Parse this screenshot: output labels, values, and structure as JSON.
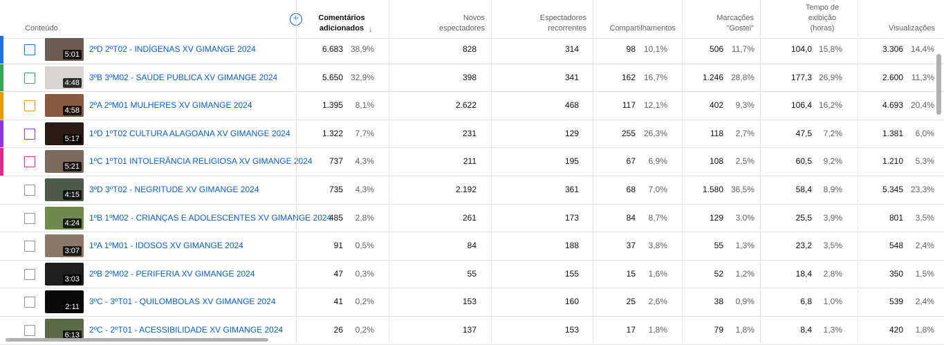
{
  "header": {
    "content": "Conteúdo",
    "comments": "Comentários adicionados",
    "new_viewers": "Novos espectadores",
    "returning_viewers": "Espectadores recorrentes",
    "shares": "Compartilhamentos",
    "likes": "Marcações \"Gostei\"",
    "watch_time": "Tempo de exibição (horas)",
    "views": "Visualizações",
    "add_icon": "plus-circle-icon",
    "sort_icon": "arrow-down-icon"
  },
  "rows": [
    {
      "color": "#1a73e8",
      "duration": "5:01",
      "title": "2ºD 2ºT02 - INDÍGENAS XV GIMANGE 2024",
      "comments": "6.683",
      "comments_pct": "38,9%",
      "new": "828",
      "returning": "314",
      "shares": "98",
      "shares_pct": "10,1%",
      "likes": "506",
      "likes_pct": "11,7%",
      "watch": "104,0",
      "watch_pct": "15,8%",
      "views": "3.306",
      "views_pct": "14,4%",
      "thumb": "#6b5d52"
    },
    {
      "color": "#34a853",
      "duration": "4:48",
      "title": "3ºB 3ºM02 - SAÚDE PUBLICA XV GIMANGE 2024",
      "comments": "5.650",
      "comments_pct": "32,9%",
      "new": "398",
      "returning": "341",
      "shares": "162",
      "shares_pct": "16,7%",
      "likes": "1.246",
      "likes_pct": "28,8%",
      "watch": "177,3",
      "watch_pct": "26,9%",
      "views": "2.600",
      "views_pct": "11,3%",
      "thumb": "#d8d4d0"
    },
    {
      "color": "#f29900",
      "duration": "4:58",
      "title": "2ºA 2ºM01 MULHERES XV GIMANGE 2024",
      "comments": "1.395",
      "comments_pct": "8,1%",
      "new": "2.622",
      "returning": "468",
      "shares": "117",
      "shares_pct": "12,1%",
      "likes": "402",
      "likes_pct": "9,3%",
      "watch": "106,4",
      "watch_pct": "16,2%",
      "views": "4.693",
      "views_pct": "20,4%",
      "thumb": "#8a5a40"
    },
    {
      "color": "#9334e6",
      "duration": "5:17",
      "title": "1ºD 1ºT02 CULTURA ALAGOANA XV GIMANGE 2024",
      "comments": "1.322",
      "comments_pct": "7,7%",
      "new": "231",
      "returning": "129",
      "shares": "255",
      "shares_pct": "26,3%",
      "likes": "118",
      "likes_pct": "2,7%",
      "watch": "47,5",
      "watch_pct": "7,2%",
      "views": "1.381",
      "views_pct": "6,0%",
      "thumb": "#2a1a14"
    },
    {
      "color": "#e52592",
      "duration": "5:21",
      "title": "1ºC 1ºT01 INTOLERÂNCIA RELIGIOSA XV GIMANGE 2024",
      "comments": "737",
      "comments_pct": "4,3%",
      "new": "211",
      "returning": "195",
      "shares": "67",
      "shares_pct": "6,9%",
      "likes": "108",
      "likes_pct": "2,5%",
      "watch": "60,5",
      "watch_pct": "9,2%",
      "views": "1.210",
      "views_pct": "5,3%",
      "thumb": "#7a6a5c"
    },
    {
      "color": "",
      "duration": "4:15",
      "title": "3ºD 3ºT02 - NEGRITUDE XV GIMANGE 2024",
      "comments": "735",
      "comments_pct": "4,3%",
      "new": "2.192",
      "returning": "361",
      "shares": "68",
      "shares_pct": "7,0%",
      "likes": "1.580",
      "likes_pct": "36,5%",
      "watch": "58,4",
      "watch_pct": "8,9%",
      "views": "5.345",
      "views_pct": "23,3%",
      "thumb": "#4e5a4a"
    },
    {
      "color": "",
      "duration": "4:24",
      "title": "1ºB 1ºM02 - CRIANÇAS E ADOLESCENTES XV GIMANGE 2024",
      "comments": "485",
      "comments_pct": "2,8%",
      "new": "261",
      "returning": "173",
      "shares": "84",
      "shares_pct": "8,7%",
      "likes": "129",
      "likes_pct": "3,0%",
      "watch": "25,5",
      "watch_pct": "3,9%",
      "views": "801",
      "views_pct": "3,5%",
      "thumb": "#6e8a4c"
    },
    {
      "color": "",
      "duration": "3:07",
      "title": "1ºA 1ºM01 - IDOSOS XV GIMANGE 2024",
      "comments": "91",
      "comments_pct": "0,5%",
      "new": "84",
      "returning": "188",
      "shares": "37",
      "shares_pct": "3,8%",
      "likes": "55",
      "likes_pct": "1,3%",
      "watch": "23,2",
      "watch_pct": "3,5%",
      "views": "548",
      "views_pct": "2,4%",
      "thumb": "#8c7868"
    },
    {
      "color": "",
      "duration": "3:03",
      "title": "2ºB 2ºM02 - PERIFERIA XV GIMANGE 2024",
      "comments": "47",
      "comments_pct": "0,3%",
      "new": "55",
      "returning": "155",
      "shares": "15",
      "shares_pct": "1,6%",
      "likes": "52",
      "likes_pct": "1,2%",
      "watch": "18,4",
      "watch_pct": "2,8%",
      "views": "350",
      "views_pct": "1,5%",
      "thumb": "#1e1e1e"
    },
    {
      "color": "",
      "duration": "2:11",
      "title": "3ºC - 3ºT01 - QUILOMBOLAS XV GIMANGE 2024",
      "comments": "41",
      "comments_pct": "0,2%",
      "new": "153",
      "returning": "160",
      "shares": "25",
      "shares_pct": "2,6%",
      "likes": "38",
      "likes_pct": "0,9%",
      "watch": "6,8",
      "watch_pct": "1,0%",
      "views": "539",
      "views_pct": "2,4%",
      "thumb": "#0a0a0a"
    },
    {
      "color": "",
      "duration": "6:13",
      "title": "2ºC - 2ºT01 - ACESSIBILIDADE XV GIMANGE 2024",
      "comments": "26",
      "comments_pct": "0,2%",
      "new": "137",
      "returning": "153",
      "shares": "17",
      "shares_pct": "1,8%",
      "likes": "79",
      "likes_pct": "1,8%",
      "watch": "8,4",
      "watch_pct": "1,3%",
      "views": "420",
      "views_pct": "1,8%",
      "thumb": "#5c6a48"
    }
  ]
}
